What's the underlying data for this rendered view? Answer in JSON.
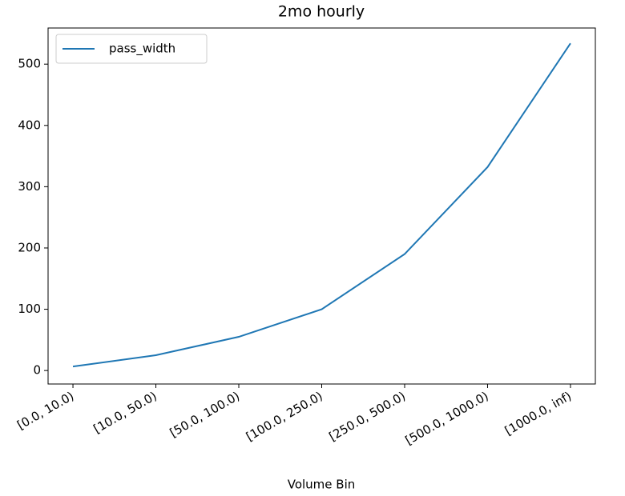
{
  "chart_data": {
    "type": "line",
    "title": "2mo hourly",
    "xlabel": "Volume Bin",
    "categories": [
      "[0.0, 10.0)",
      "[10.0, 50.0)",
      "[50.0, 100.0)",
      "[100.0, 250.0)",
      "[250.0, 500.0)",
      "[500.0, 1000.0)",
      "[1000.0, inf)"
    ],
    "series": [
      {
        "name": "pass_width",
        "color": "#1f77b4",
        "values": [
          6.5,
          25,
          55,
          100,
          190,
          332,
          534
        ]
      }
    ],
    "ylim": [
      -22,
      559
    ],
    "yticks": [
      0,
      100,
      200,
      300,
      400,
      500
    ],
    "legend": "upper left",
    "grid": false
  }
}
